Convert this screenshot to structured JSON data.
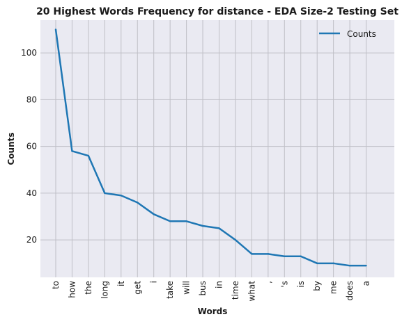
{
  "chart_data": {
    "type": "line",
    "title": "20 Highest Words Frequency for distance - EDA Size-2 Testing Set",
    "xlabel": "Words",
    "ylabel": "Counts",
    "categories": [
      "to",
      "how",
      "the",
      "long",
      "it",
      "get",
      "i",
      "take",
      "will",
      "bus",
      "in",
      "time",
      "what",
      ",",
      "'s",
      "is",
      "by",
      "me",
      "does",
      "a"
    ],
    "series": [
      {
        "name": "Counts",
        "values": [
          110,
          58,
          56,
          40,
          39,
          36,
          31,
          28,
          28,
          26,
          25,
          20,
          14,
          14,
          13,
          13,
          10,
          10,
          9,
          9
        ]
      }
    ],
    "yticks": [
      "20",
      "40",
      "60",
      "80",
      "100"
    ],
    "ylim": [
      4,
      114
    ],
    "grid": true,
    "legend": "top-right",
    "colors": {
      "series": "#1f77b4",
      "plot_background": "#eaeaf2",
      "grid": "#bfbfc6"
    }
  }
}
